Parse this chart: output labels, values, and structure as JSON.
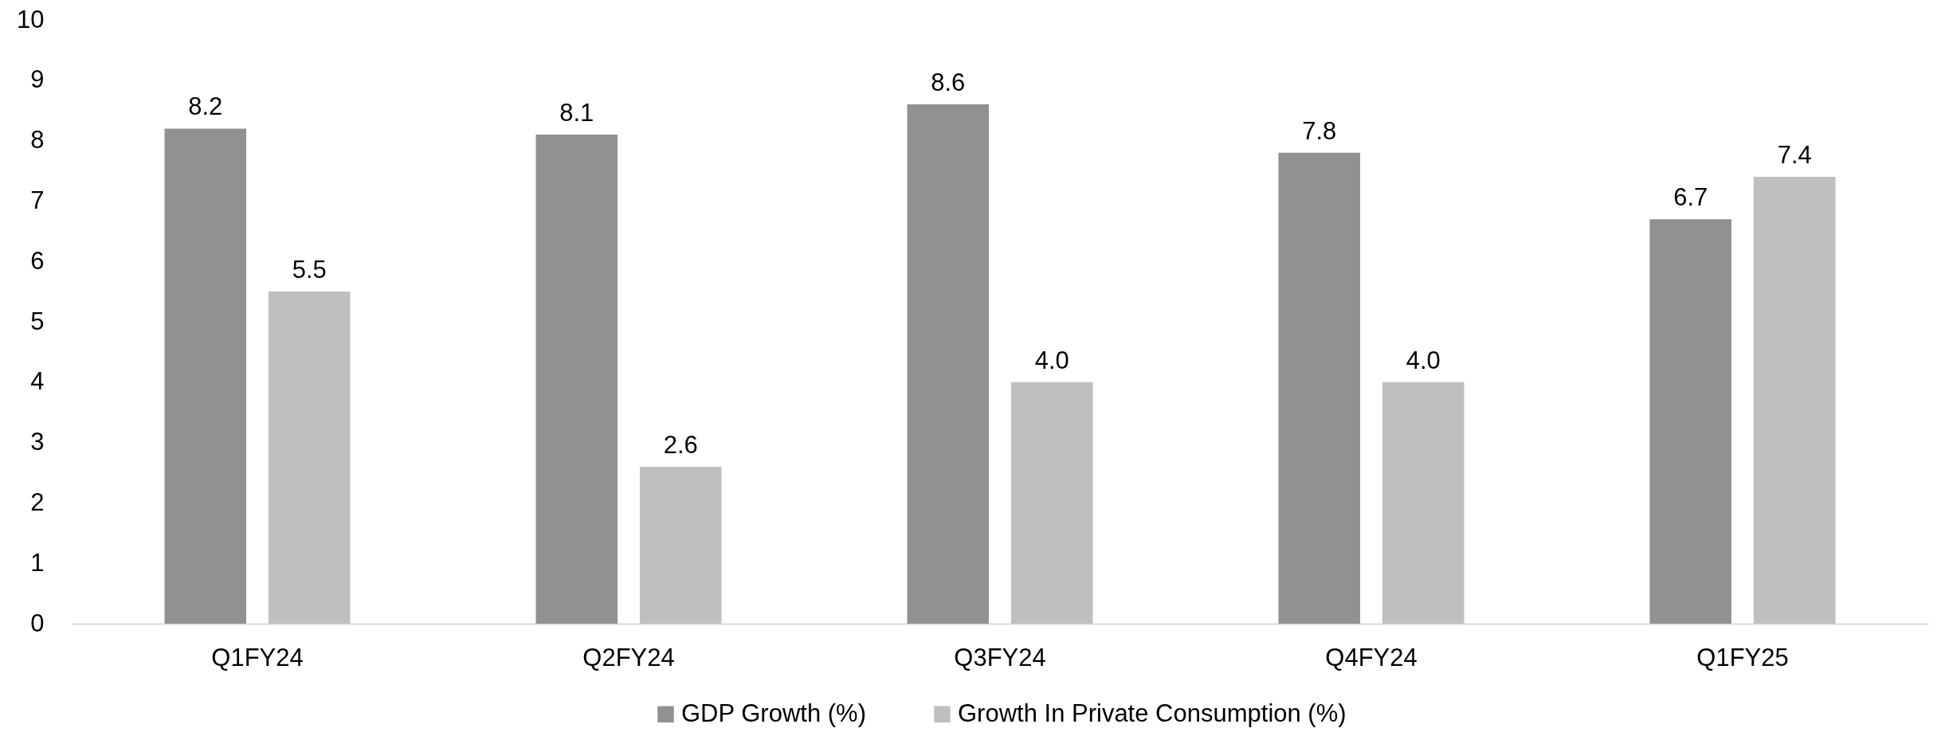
{
  "chart_data": {
    "type": "bar",
    "categories": [
      "Q1FY24",
      "Q2FY24",
      "Q3FY24",
      "Q4FY24",
      "Q1FY25"
    ],
    "series": [
      {
        "name": "GDP Growth  (%)",
        "color": "#919191",
        "values": [
          8.2,
          8.1,
          8.6,
          7.8,
          6.7
        ],
        "value_labels": [
          "8.2",
          "8.1",
          "8.6",
          "7.8",
          "6.7"
        ]
      },
      {
        "name": "Growth In Private Consumption (%)",
        "color": "#bfbfbf",
        "values": [
          5.5,
          2.6,
          4.0,
          4.0,
          7.4
        ],
        "value_labels": [
          "5.5",
          "2.6",
          "4.0",
          "4.0",
          "7.4"
        ]
      }
    ],
    "ylim": [
      0,
      10
    ],
    "yticks": [
      0,
      1,
      2,
      3,
      4,
      5,
      6,
      7,
      8,
      9,
      10
    ],
    "grid": false,
    "legend": "bottom"
  }
}
